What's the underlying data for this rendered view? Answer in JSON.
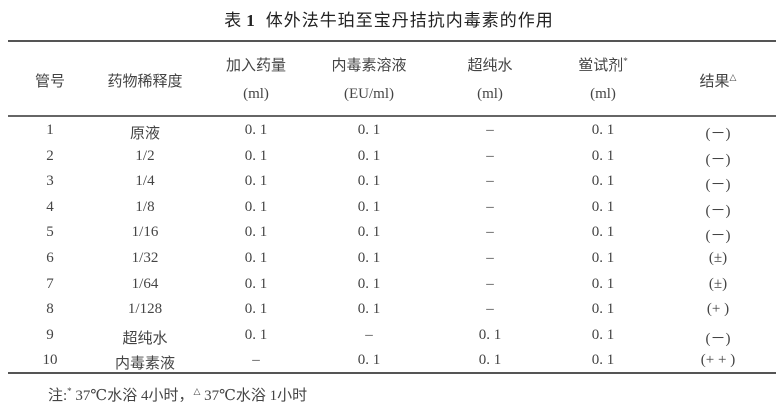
{
  "title": {
    "prefix": "表",
    "number": "1",
    "text": "体外法牛珀至宝丹拮抗内毒素的作用"
  },
  "headers": [
    {
      "line1": "管号",
      "line2": ""
    },
    {
      "line1": "药物稀释度",
      "line2": ""
    },
    {
      "line1": "加入药量",
      "line2": "(ml)"
    },
    {
      "line1": "内毒素溶液",
      "line2": "(EU/ml)"
    },
    {
      "line1": "超纯水",
      "line2": "(ml)"
    },
    {
      "line1": "鲎试剂",
      "sup": "*",
      "line2": "(ml)"
    },
    {
      "line1": "结果",
      "sup": "△",
      "line2": ""
    }
  ],
  "rows": [
    [
      "1",
      "原液",
      "0. 1",
      "0. 1",
      "–",
      "0. 1",
      "(－)"
    ],
    [
      "2",
      "1/2",
      "0. 1",
      "0. 1",
      "–",
      "0. 1",
      "(－)"
    ],
    [
      "3",
      "1/4",
      "0. 1",
      "0. 1",
      "–",
      "0. 1",
      "(－)"
    ],
    [
      "4",
      "1/8",
      "0. 1",
      "0. 1",
      "–",
      "0. 1",
      "(－)"
    ],
    [
      "5",
      "1/16",
      "0. 1",
      "0. 1",
      "–",
      "0. 1",
      "(－)"
    ],
    [
      "6",
      "1/32",
      "0. 1",
      "0. 1",
      "–",
      "0. 1",
      "(±)"
    ],
    [
      "7",
      "1/64",
      "0. 1",
      "0. 1",
      "–",
      "0. 1",
      "(±)"
    ],
    [
      "8",
      "1/128",
      "0. 1",
      "0. 1",
      "–",
      "0. 1",
      "(+ )"
    ],
    [
      "9",
      "超纯水",
      "0. 1",
      "–",
      "0. 1",
      "0. 1",
      "(－)"
    ],
    [
      "10",
      "内毒素液",
      "–",
      "0. 1",
      "0. 1",
      "0. 1",
      "(+ + )"
    ]
  ],
  "note": {
    "label": "注:",
    "sup1": "*",
    "text1": " 37℃水浴 4小时，",
    "sup2": "△",
    "text2": " 37℃水浴 1小时"
  }
}
